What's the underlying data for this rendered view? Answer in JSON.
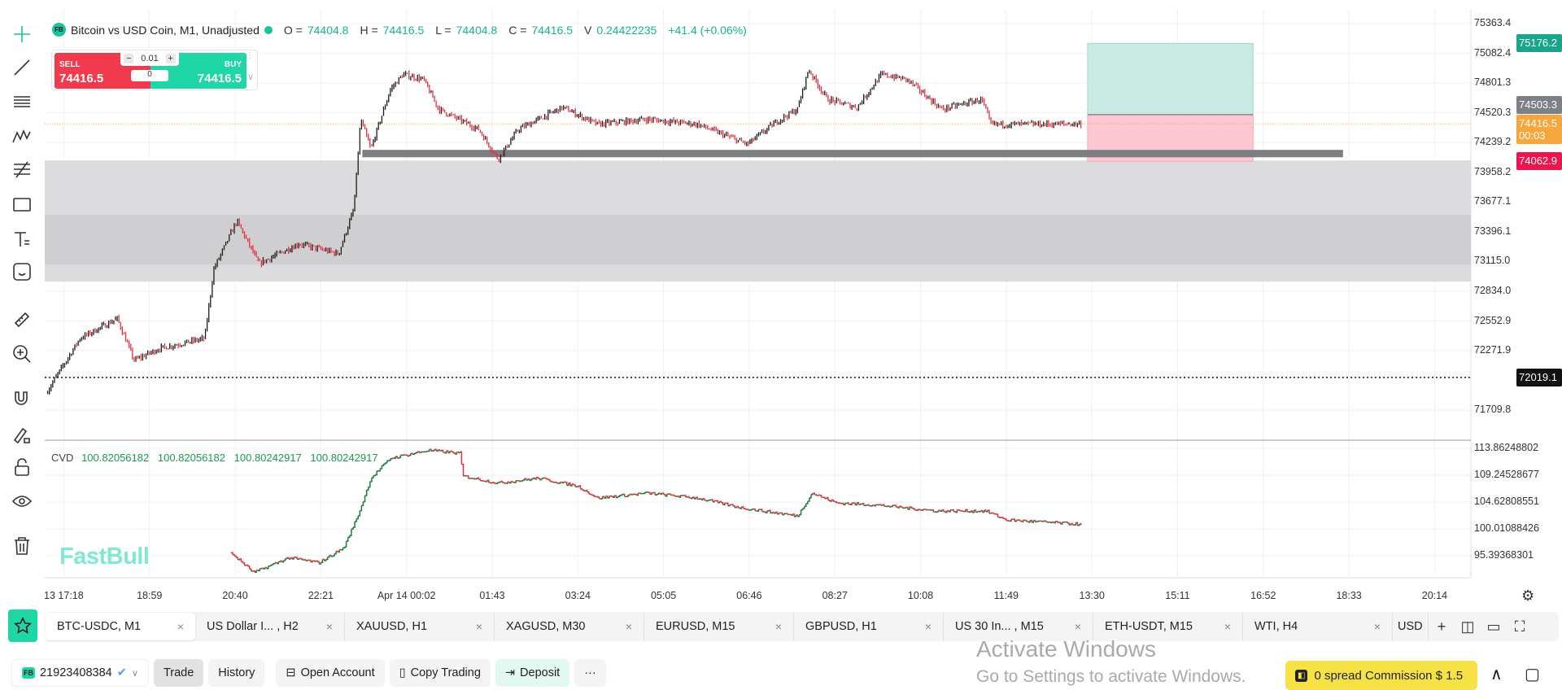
{
  "legend": {
    "badge": "FB",
    "title": "Bitcoin vs USD Coin, M1, Unadjusted",
    "o_label": "O =",
    "o": "74404.8",
    "h_label": "H =",
    "h": "74416.5",
    "l_label": "L =",
    "l": "74404.8",
    "c_label": "C =",
    "c": "74416.5",
    "v_label": "V",
    "v": "0.24422235",
    "change": "+41.4 (+0.06%)"
  },
  "trade_widget": {
    "sell_label": "SELL",
    "buy_label": "BUY",
    "sell_price": "74416.5",
    "buy_price": "74416.5",
    "lot": "0.01",
    "spread": "0"
  },
  "price_axis": {
    "ticks": [
      "75363.4",
      "75082.4",
      "74801.3",
      "74520.3",
      "74239.2",
      "73958.2",
      "73677.1",
      "73396.1",
      "73115.0",
      "72834.0",
      "72552.9",
      "72271.9",
      "71709.8"
    ],
    "tick_values": [
      75363.4,
      75082.4,
      74801.3,
      74520.3,
      74239.2,
      73958.2,
      73677.1,
      73396.1,
      73115.0,
      72834.0,
      72552.9,
      72271.9,
      71709.8
    ],
    "labels": {
      "take_profit": "75176.2",
      "entry": "74503.3",
      "current": "74416.5",
      "countdown": "00:03",
      "stop_loss": "74062.9",
      "alert_line": "72019.1"
    }
  },
  "time_axis": {
    "ticks": [
      "13 17:18",
      "18:59",
      "20:40",
      "22:21",
      "Apr 14 00:02",
      "01:43",
      "03:24",
      "05:05",
      "06:46",
      "08:27",
      "10:08",
      "11:49",
      "13:30",
      "15:11",
      "16:52",
      "18:33",
      "20:14"
    ],
    "tick_minutes": [
      0,
      101,
      202,
      303,
      404,
      505,
      606,
      707,
      808,
      909,
      1010,
      1111,
      1212,
      1313,
      1414,
      1515,
      1616
    ]
  },
  "chart_data": {
    "type": "candlestick",
    "price_range": [
      71600,
      75420
    ],
    "price_path": [
      [
        -21,
        71870
      ],
      [
        19,
        72388
      ],
      [
        63,
        72576
      ],
      [
        83,
        72181
      ],
      [
        113,
        72294
      ],
      [
        166,
        72388
      ],
      [
        177,
        73047
      ],
      [
        204,
        73499
      ],
      [
        230,
        73094
      ],
      [
        277,
        73283
      ],
      [
        324,
        73188
      ],
      [
        342,
        73612
      ],
      [
        350,
        74460
      ],
      [
        362,
        74177
      ],
      [
        385,
        74742
      ],
      [
        400,
        74883
      ],
      [
        424,
        74836
      ],
      [
        442,
        74554
      ],
      [
        489,
        74365
      ],
      [
        512,
        74083
      ],
      [
        536,
        74365
      ],
      [
        588,
        74572
      ],
      [
        629,
        74412
      ],
      [
        688,
        74460
      ],
      [
        747,
        74412
      ],
      [
        806,
        74224
      ],
      [
        841,
        74441
      ],
      [
        865,
        74554
      ],
      [
        878,
        74930
      ],
      [
        900,
        74648
      ],
      [
        935,
        74572
      ],
      [
        964,
        74883
      ],
      [
        994,
        74836
      ],
      [
        1035,
        74554
      ],
      [
        1082,
        74648
      ],
      [
        1093,
        74412
      ],
      [
        1146,
        74412
      ],
      [
        1200,
        74416.5
      ]
    ],
    "zones": {
      "outer": [
        72925,
        74070
      ],
      "inner": [
        73085,
        73556
      ],
      "level_bar": [
        74100,
        74170
      ]
    },
    "position": {
      "start_min": 1207,
      "end_min": 1402,
      "take_profit": 75176.2,
      "entry": 74503.3,
      "stop_loss": 74062.9
    },
    "level_bar_span": [
      352,
      1508
    ],
    "cvd": {
      "name": "CVD",
      "values_text": [
        "100.82056182",
        "100.82056182",
        "100.80242917",
        "100.80242917"
      ],
      "ticks": [
        "113.86248802",
        "109.24528677",
        "104.62808551",
        "100.01088426",
        "95.39368301"
      ],
      "tick_values": [
        113.86248802,
        109.24528677,
        104.62808551,
        100.01088426,
        95.39368301
      ],
      "path": [
        [
          197,
          95.91
        ],
        [
          224,
          92.49
        ],
        [
          265,
          95.05
        ],
        [
          301,
          94.2
        ],
        [
          330,
          96.76
        ],
        [
          348,
          102.75
        ],
        [
          362,
          108.73
        ],
        [
          385,
          112.15
        ],
        [
          430,
          113.52
        ],
        [
          467,
          113.01
        ],
        [
          471,
          109.07
        ],
        [
          512,
          107.88
        ],
        [
          559,
          108.73
        ],
        [
          606,
          107.36
        ],
        [
          629,
          105.31
        ],
        [
          688,
          106.17
        ],
        [
          747,
          105.31
        ],
        [
          800,
          103.6
        ],
        [
          865,
          102.23
        ],
        [
          882,
          106.17
        ],
        [
          911,
          104.46
        ],
        [
          958,
          104.12
        ],
        [
          1029,
          103.09
        ],
        [
          1087,
          103.09
        ],
        [
          1111,
          101.55
        ],
        [
          1200,
          100.8
        ]
      ]
    }
  },
  "watermark": "FastBull",
  "tabs": [
    {
      "label": "BTC-USDC, M1"
    },
    {
      "label": "US Dollar I... , H2"
    },
    {
      "label": "XAUUSD, H1"
    },
    {
      "label": "XAGUSD, M30"
    },
    {
      "label": "EURUSD, M15"
    },
    {
      "label": "GBPUSD, H1"
    },
    {
      "label": "US 30 In... , M15"
    },
    {
      "label": "ETH-USDT, M15"
    },
    {
      "label": "WTI, H4"
    },
    {
      "label": "USD"
    }
  ],
  "tab_close": "×",
  "bottom": {
    "account_badge": "FB",
    "account": "21923408384",
    "trade": "Trade",
    "history": "History",
    "open_account": "Open Account",
    "copy_trading": "Copy Trading",
    "deposit": "Deposit",
    "more": "···",
    "promo": "0 spread Commission $ 1.5"
  },
  "windows": {
    "line1": "Activate Windows",
    "line2": "Go to Settings to activate Windows."
  },
  "colors": {
    "up": "#1b1b1b",
    "down": "#e0303f",
    "accent": "#1fd6a6",
    "sell": "#f23a4e",
    "current": "#f7a63b"
  }
}
